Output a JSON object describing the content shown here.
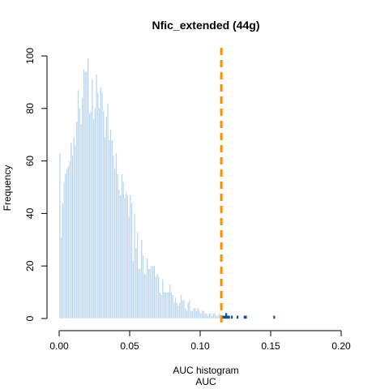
{
  "chart_data": {
    "type": "bar",
    "title": "Nfic_extended (44g)",
    "xlabel_line1": "AUC histogram",
    "xlabel_line2": "AUC",
    "ylabel": "Frequency",
    "xlim": [
      0,
      0.21
    ],
    "ylim": [
      0,
      100
    ],
    "x_ticks": [
      0.0,
      0.05,
      0.1,
      0.15,
      0.2
    ],
    "x_tick_labels": [
      "0.00",
      "0.05",
      "0.10",
      "0.15",
      "0.20"
    ],
    "y_ticks": [
      0,
      20,
      40,
      60,
      80,
      100
    ],
    "y_tick_labels": [
      "0",
      "20",
      "40",
      "60",
      "80",
      "100"
    ],
    "bin_width": 0.001,
    "bin_start": 0.0,
    "counts": [
      63,
      31,
      44,
      52,
      55,
      57,
      58,
      60,
      67,
      62,
      69,
      66,
      75,
      87,
      80,
      74,
      84,
      95,
      94,
      94,
      99,
      78,
      79,
      91,
      76,
      80,
      93,
      86,
      80,
      88,
      86,
      79,
      69,
      77,
      82,
      68,
      72,
      68,
      62,
      57,
      63,
      55,
      49,
      47,
      55,
      52,
      46,
      48,
      47,
      39,
      47,
      44,
      22,
      40,
      27,
      33,
      19,
      19,
      30,
      24,
      17,
      17,
      23,
      19,
      19,
      20,
      20,
      20,
      16,
      17,
      16,
      10,
      9,
      15,
      10,
      10,
      10,
      10,
      13,
      10,
      9,
      6,
      8,
      6,
      5,
      6,
      9,
      7,
      7,
      4,
      3,
      6,
      7,
      3,
      3,
      4,
      4,
      3,
      4,
      3,
      2,
      3,
      3,
      2,
      2,
      1,
      2,
      2,
      1,
      2,
      2,
      1,
      1,
      2,
      1,
      1,
      1,
      1,
      2,
      1,
      1,
      0,
      1,
      0,
      0,
      0,
      1,
      0,
      0,
      0,
      0,
      1,
      1,
      0,
      0,
      0,
      0,
      0,
      0,
      0,
      0,
      0,
      0,
      0,
      0,
      0,
      0,
      0,
      0,
      0,
      0,
      0,
      1,
      0,
      0,
      0,
      0,
      0,
      0,
      0,
      0,
      0,
      0,
      0,
      0,
      0,
      0,
      0,
      0,
      0,
      0,
      0,
      0,
      0,
      0,
      0,
      0,
      0,
      0,
      0,
      0,
      0,
      0,
      0,
      0,
      0,
      0,
      0,
      0,
      0,
      0,
      0,
      0,
      0,
      0,
      0,
      0,
      0,
      0,
      0,
      0,
      0,
      0,
      0,
      0,
      0,
      0,
      0,
      0,
      0,
      0,
      0,
      0,
      0,
      0,
      0,
      0,
      0,
      0,
      0
    ],
    "threshold": 0.115,
    "colors": {
      "below_threshold": "#bdd7ee",
      "above_threshold": "#08519c",
      "bar_border_below": "#ffffff",
      "threshold_line": "#ff8c00",
      "axis": "#000000"
    },
    "grid": false
  }
}
